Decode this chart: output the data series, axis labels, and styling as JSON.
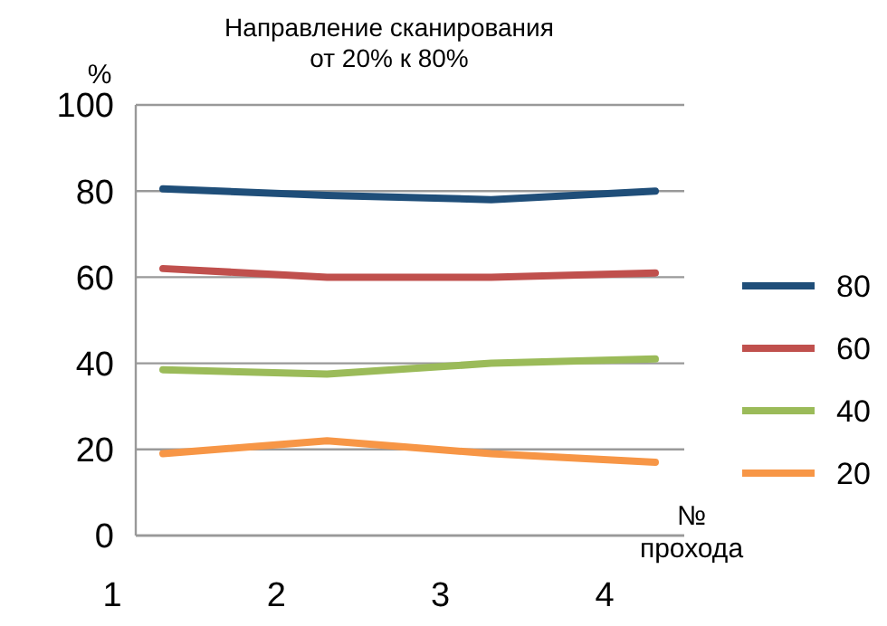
{
  "chart_data": {
    "type": "line",
    "title": "Направление сканирования",
    "subtitle": "от 20% к 80%",
    "xlabel": "№ прохода",
    "ylabel": "%",
    "categories": [
      "1",
      "2",
      "3",
      "4"
    ],
    "series": [
      {
        "name": "80",
        "color": "#1f4e79",
        "values": [
          80.5,
          79,
          78,
          80
        ]
      },
      {
        "name": "60",
        "color": "#c0504d",
        "values": [
          62,
          60,
          60,
          61
        ]
      },
      {
        "name": "40",
        "color": "#9bbb59",
        "values": [
          38.5,
          37.5,
          40,
          41
        ]
      },
      {
        "name": "20",
        "color": "#f79646",
        "values": [
          19,
          22,
          19,
          17
        ]
      }
    ],
    "ylim": [
      0,
      100
    ],
    "yticks": [
      0,
      20,
      40,
      60,
      80,
      100
    ],
    "grid": "y",
    "legend": "right",
    "marker": "none",
    "line_style": "solid"
  }
}
